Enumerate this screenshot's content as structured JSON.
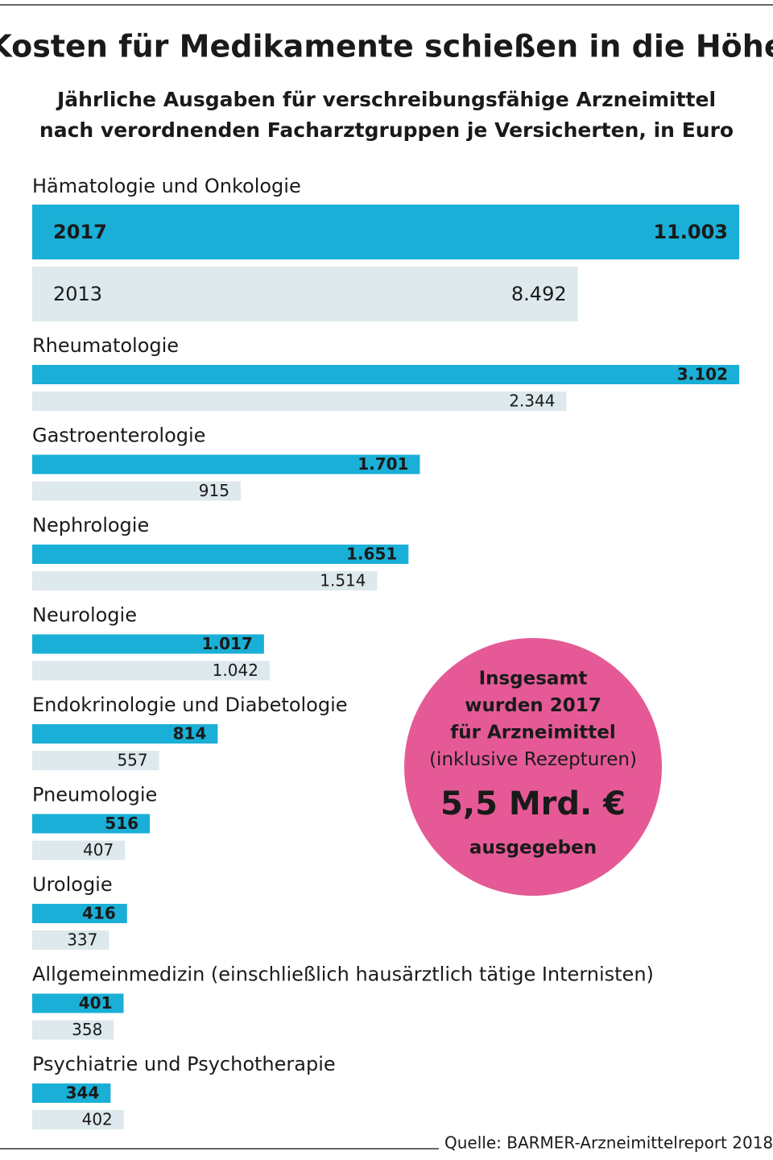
{
  "chart_data": [
    {
      "type": "bar",
      "orientation": "horizontal",
      "title": "Kosten für Medikamente schießen in die Höhe",
      "subtitle": [
        "Jährliche Ausgaben für verschreibungsfähige Arzneimittel",
        "nach verordnenden Facharztgruppen je Versicherten, in Euro"
      ],
      "categories": [
        "Hämatologie und Onkologie"
      ],
      "series": [
        {
          "name": "2017",
          "color": "#1aafd6",
          "values": [
            11003
          ],
          "value_labels": [
            "11.003"
          ]
        },
        {
          "name": "2013",
          "color": "#dde9ec",
          "values": [
            8492
          ],
          "value_labels": [
            "8.492"
          ]
        }
      ],
      "xlim": [
        0,
        11003
      ]
    },
    {
      "type": "bar",
      "orientation": "horizontal",
      "categories": [
        "Rheumatologie",
        "Gastroenterologie",
        "Nephrologie",
        "Neurologie",
        "Endokrinologie und Diabetologie",
        "Pneumologie",
        "Urologie",
        "Allgemeinmedizin (einschließlich hausärztlich tätige Internisten)",
        "Psychiatrie und Psychotherapie"
      ],
      "series": [
        {
          "color": "#1aafd6",
          "values": [
            3102,
            1701,
            1651,
            1017,
            814,
            516,
            416,
            401,
            344
          ],
          "value_labels": [
            "3.102",
            "1.701",
            "1.651",
            "1.017",
            "814",
            "516",
            "416",
            "401",
            "344"
          ]
        },
        {
          "color": "#dde9ec",
          "values": [
            2344,
            915,
            1514,
            1042,
            557,
            407,
            337,
            358,
            402
          ],
          "value_labels": [
            "2.344",
            "915",
            "1.514",
            "1.042",
            "557",
            "407",
            "337",
            "358",
            "402"
          ]
        }
      ],
      "xlim": [
        0,
        3102
      ],
      "annotation": {
        "lines": [
          "Insgesamt",
          "wurden 2017",
          "für Arzneimittel",
          "(inklusive Rezepturen)"
        ],
        "amount": "5,5 Mrd. €",
        "footer": "ausgegeben",
        "color": "#e55a96"
      },
      "source": "Quelle: BARMER-Arzneimittelreport 2018"
    }
  ]
}
